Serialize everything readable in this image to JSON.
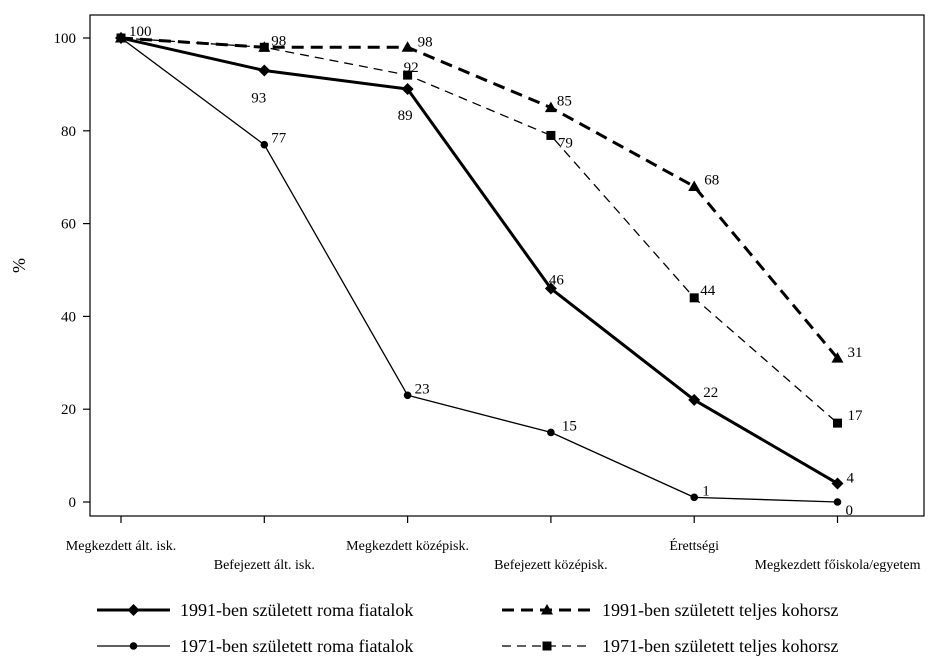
{
  "chart_data": {
    "type": "line",
    "title": "",
    "xlabel": "",
    "ylabel": "%",
    "ylim": [
      0,
      100
    ],
    "yticks": [
      0,
      20,
      40,
      60,
      80,
      100
    ],
    "grid": false,
    "legend_position": "bottom",
    "categories": [
      "Megkezdett ált. isk.",
      "Befejezett ált. isk.",
      "Megkezdett középisk.",
      "Befejezett középisk.",
      "Érettségi",
      "Megkezdett főiskola/egyetem"
    ],
    "series": [
      {
        "name": "1991-ben született roma fiatalok",
        "values": [
          100,
          93,
          89,
          46,
          22,
          4
        ],
        "labels": [
          "100",
          "93",
          "89",
          "46",
          "22",
          "4"
        ],
        "line": "solid-thick",
        "marker": "diamond",
        "color": "#000000"
      },
      {
        "name": "1971-ben született roma fiatalok",
        "values": [
          100,
          77,
          23,
          15,
          1,
          0
        ],
        "labels": [
          "",
          "77",
          "23",
          "15",
          "1",
          "0"
        ],
        "line": "solid-thin",
        "marker": "circle",
        "color": "#000000"
      },
      {
        "name": "1991-ben született teljes kohorsz",
        "values": [
          100,
          98,
          98,
          85,
          68,
          31
        ],
        "labels": [
          "",
          "98",
          "98",
          "85",
          "68",
          "31"
        ],
        "line": "dashed-thick",
        "marker": "triangle",
        "color": "#000000"
      },
      {
        "name": "1971-ben született teljes kohorsz",
        "values": [
          100,
          98,
          92,
          79,
          44,
          17
        ],
        "labels": [
          "",
          "",
          "92",
          "79",
          "44",
          "17"
        ],
        "line": "dashed-thin",
        "marker": "square",
        "color": "#000000"
      }
    ]
  }
}
